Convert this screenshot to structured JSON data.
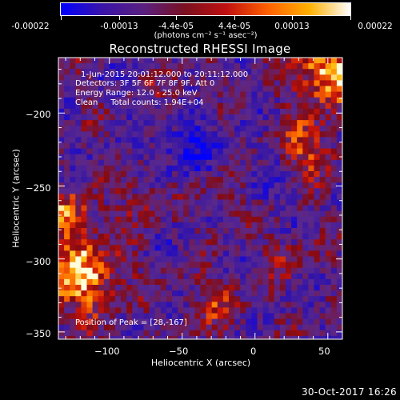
{
  "colorbar": {
    "tick_labels": [
      "-0.00022",
      "-0.00013",
      "-4.4e-05",
      "4.4e-05",
      "0.00013",
      "0.00022"
    ],
    "unit_label": "(photons cm⁻² s⁻¹ asec⁻²)",
    "range": [
      -0.00022,
      0.00022
    ],
    "colors": [
      "#0000ff",
      "#3a14a8",
      "#5a2080",
      "#7a1020",
      "#c01010",
      "#ff6000",
      "#ffb000",
      "#ffffff"
    ]
  },
  "title": "Reconstructed RHESSI Image",
  "annotations": {
    "time_range": "1-Jun-2015 20:01:12.000 to 20:11:12.000",
    "detectors": "Detectors: 3F 5F 6F 7F 8F 9F, Att 0",
    "energy": "Energy Range: 12.0 - 25.0 keV",
    "method": "Clean     Total counts: 1.94E+04",
    "peak": "Position of Peak = [28,-167]"
  },
  "chart_data": {
    "type": "heatmap",
    "title": "Reconstructed RHESSI Image",
    "xlabel": "Heliocentric X (arcsec)",
    "ylabel": "Heliocentric Y (arcsec)",
    "xlim": [
      -135,
      60
    ],
    "ylim": [
      -355,
      -162
    ],
    "xticks": [
      -100,
      -50,
      0,
      50
    ],
    "yticks": [
      -350,
      -300,
      -250,
      -200
    ],
    "x_tick_labels": [
      "−100",
      "−50",
      "0",
      "50"
    ],
    "y_tick_labels": [
      "−350",
      "−300",
      "−250",
      "−200"
    ],
    "peak": [
      28,
      -167
    ],
    "value_range": [
      -0.00022,
      0.00022
    ]
  },
  "footer": {
    "timestamp": "30-Oct-2017 16:26"
  }
}
